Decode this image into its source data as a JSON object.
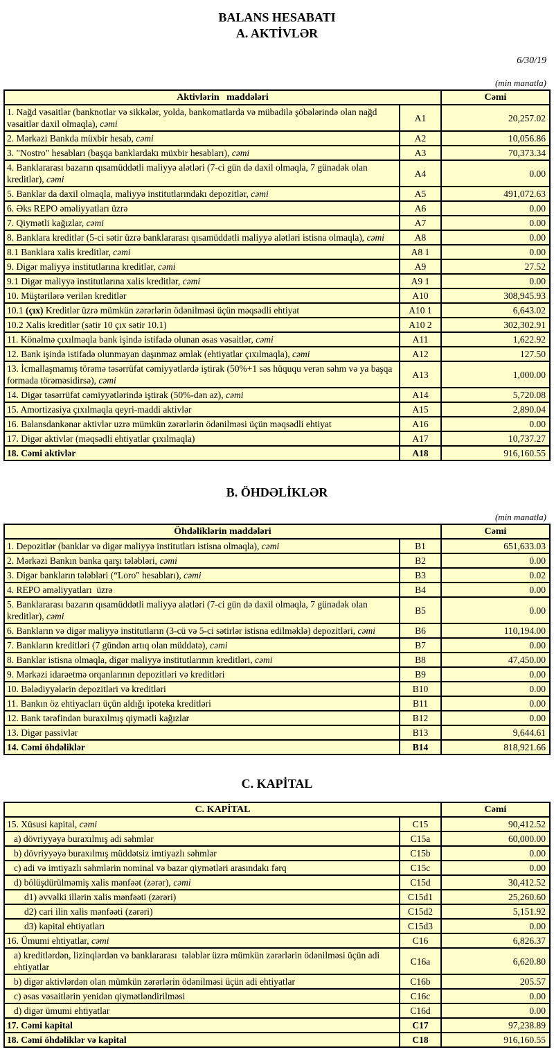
{
  "page": {
    "title_line1": "BALANS HESABATI",
    "title_line2": "A. AKTİVLƏR",
    "date": "6/30/19",
    "unit_note_a": "(min manatla)",
    "section_b_title": "B. ÖHDƏLİKLƏR",
    "unit_note_b": "(min manatla)",
    "section_c_title": "C. KAPİTAL"
  },
  "tables": {
    "assets": {
      "header": {
        "items": "Aktivlərin   maddələri",
        "total": "Cəmi"
      },
      "rows": [
        {
          "label": [
            [
              "1. Nağd vəsaitlər (banknotlar və sikkələr, yolda, bankomatlarda və mübadilə şöbələrində olan nağd vəsaitlər daxil olmaqla), ",
              ""
            ],
            [
              "cəmi",
              "i"
            ]
          ],
          "code": "A1",
          "value": "20,257.02"
        },
        {
          "label": [
            [
              "2. Mərkəzi Bankda müxbir hesab, ",
              ""
            ],
            [
              "cəmi",
              "i"
            ]
          ],
          "code": "A2",
          "value": "10,056.86"
        },
        {
          "label": [
            [
              "3. \"Nostro\" hesabları (başqa banklardakı müxbir hesabları), ",
              ""
            ],
            [
              "cəmi",
              "i"
            ]
          ],
          "code": "A3",
          "value": "70,373.34"
        },
        {
          "label": [
            [
              "4. Banklararası bazarın qısamüddətli maliyyə alətləri (7-ci gün də daxil olmaqla, 7 günədək olan kreditlər), ",
              ""
            ],
            [
              "cəmi",
              "i"
            ]
          ],
          "code": "A4",
          "value": "0.00"
        },
        {
          "label": [
            [
              "5. Banklar da daxil olmaqla, maliyyə institutlarındakı depozitlər, ",
              ""
            ],
            [
              "cəmi",
              "i"
            ]
          ],
          "code": "A5",
          "value": "491,072.63"
        },
        {
          "label": [
            [
              "6. Əks REPO əməliyyatları üzrə",
              ""
            ]
          ],
          "code": "A6",
          "value": "0.00"
        },
        {
          "label": [
            [
              "7. Qiymətli kağızlar, ",
              ""
            ],
            [
              "cəmi",
              "i"
            ]
          ],
          "code": "A7",
          "value": "0.00"
        },
        {
          "label": [
            [
              "8. Banklara kreditlər (5-ci sətir üzrə banklararası qısamüddətli maliyyə alətləri istisna olmaqla), ",
              ""
            ],
            [
              "cəmi",
              "i"
            ]
          ],
          "code": "A8",
          "value": "0.00"
        },
        {
          "label": [
            [
              "8.1 Banklara xalis kreditlər, ",
              ""
            ],
            [
              "cəmi",
              "i"
            ]
          ],
          "code": "A8 1",
          "value": "0.00"
        },
        {
          "label": [
            [
              "9. Digər maliyyə institutlarına kreditlər, ",
              ""
            ],
            [
              "cəmi",
              "i"
            ]
          ],
          "code": "A9",
          "value": "27.52"
        },
        {
          "label": [
            [
              "9.1 Digər maliyyə institutlarına xalis kreditlər, ",
              ""
            ],
            [
              "cəmi",
              "i"
            ]
          ],
          "code": "A9 1",
          "value": "0.00"
        },
        {
          "label": [
            [
              "10. Müştərilərə verilən kreditlər",
              ""
            ]
          ],
          "code": "A10",
          "value": "308,945.93"
        },
        {
          "label": [
            [
              "10.1 ",
              ""
            ],
            [
              "(çıx)",
              "b"
            ],
            [
              " Kreditlər üzrə mümkün zərərlərin ödənilməsi üçün məqsədli ehtiyat",
              ""
            ]
          ],
          "code": "A10 1",
          "value": "6,643.02"
        },
        {
          "label": [
            [
              "10.2 Xalis kreditlər (sətir 10 çıx sətir 10.1)",
              ""
            ]
          ],
          "code": "A10 2",
          "value": "302,302.91"
        },
        {
          "label": [
            [
              "11. Könəlmə çıxılmaqla bank işində istifadə olunan əsas vəsaitlər, ",
              ""
            ],
            [
              "cəmi",
              "i"
            ]
          ],
          "code": "A11",
          "value": "1,622.92"
        },
        {
          "label": [
            [
              "12. Bank işində istifadə olunmayan daşınmaz əmlak (ehtiyatlar çıxılmaqla), ",
              ""
            ],
            [
              "cəmi",
              "i"
            ]
          ],
          "code": "A12",
          "value": "127.50"
        },
        {
          "label": [
            [
              "13. İcmallaşmamış törəmə təsərrüfat cəmiyyətlərdə iştirak (50%+1 səs hüququ verən səhm və ya başqa formada törəməsidirsə), ",
              ""
            ],
            [
              "cəmi",
              "i"
            ]
          ],
          "code": "A13",
          "value": "1,000.00"
        },
        {
          "label": [
            [
              "14. Digər təsərrüfat cəmiyyətlərində iştirak (50%-dən az), ",
              ""
            ],
            [
              "cəmi",
              "i"
            ]
          ],
          "code": "A14",
          "value": "5,720.08"
        },
        {
          "label": [
            [
              "15. Amortizasiya çıxılmaqla qeyri-maddi aktivlər",
              ""
            ]
          ],
          "code": "A15",
          "value": "2,890.04"
        },
        {
          "label": [
            [
              "16. Balansdankənar aktivlər uzrə mümkün zərərlərin ödənilməsi üçün məqsədli ehtiyat",
              ""
            ]
          ],
          "code": "A16",
          "value": "0.00"
        },
        {
          "label": [
            [
              "17. Digər aktivlər (məqsədli ehtiyatlar çıxılmaqla)",
              ""
            ]
          ],
          "code": "A17",
          "value": "10,737.27"
        },
        {
          "label": [
            [
              "18. Cəmi aktivlər",
              ""
            ]
          ],
          "code": "A18",
          "value": "916,160.55",
          "bold": true
        }
      ]
    },
    "liabilities": {
      "header": {
        "items": "Öhdəliklərin maddələri",
        "total": "Cəmi"
      },
      "rows": [
        {
          "label": [
            [
              "1. Depozitlər (banklar və digər maliyyə institutları istisna olmaqla), ",
              ""
            ],
            [
              "cəmi",
              "i"
            ]
          ],
          "code": "B1",
          "value": "651,633.03"
        },
        {
          "label": [
            [
              "2. Mərkəzi Bankın banka qarşı tələbləri, ",
              ""
            ],
            [
              "cəmi",
              "i"
            ]
          ],
          "code": "B2",
          "value": "0.00"
        },
        {
          "label": [
            [
              "3. Digər bankların tələbləri (“Loro\" hesabları), ",
              ""
            ],
            [
              "cəmi",
              "i"
            ]
          ],
          "code": "B3",
          "value": "0.02"
        },
        {
          "label": [
            [
              "4. REPO əməliyyatları  üzrə",
              ""
            ]
          ],
          "code": "B4",
          "value": "0.00"
        },
        {
          "label": [
            [
              "5. Banklararası bazarın qısamüddətli maliyyə alətləri (7-ci gün də daxil olmaqla, 7 günədək olan kreditlər), ",
              ""
            ],
            [
              "cəmi",
              "i"
            ]
          ],
          "code": "B5",
          "value": "0.00"
        },
        {
          "label": [
            [
              "6. Bankların və digər maliyyə institutların (3-cü və 5-ci sətirlər istisna edilməklə) depozitləri, ",
              ""
            ],
            [
              "cəmi",
              "i"
            ]
          ],
          "code": "B6",
          "value": "110,194.00"
        },
        {
          "label": [
            [
              "7. Bankların kreditləri (7 gündən artıq olan müddətə), ",
              ""
            ],
            [
              "cəmi",
              "i"
            ]
          ],
          "code": "B7",
          "value": "0.00"
        },
        {
          "label": [
            [
              "8. Banklar istisna olmaqla, digər maliyyə institutlarının kreditləri, ",
              ""
            ],
            [
              "cəmi",
              "i"
            ]
          ],
          "code": "B8",
          "value": "47,450.00"
        },
        {
          "label": [
            [
              "9. Mərkəzi idarəetmə orqanlarının depozitləri və kreditləri",
              ""
            ]
          ],
          "code": "B9",
          "value": "0.00"
        },
        {
          "label": [
            [
              "10. Bələdiyyələrin depozitləri və kreditləri",
              ""
            ]
          ],
          "code": "B10",
          "value": "0.00"
        },
        {
          "label": [
            [
              "11. Bankın öz ehtiyacları üçün aldığı ipoteka kreditləri",
              ""
            ]
          ],
          "code": "B11",
          "value": "0.00"
        },
        {
          "label": [
            [
              "12. Bank tərəfindən buraxılmış qiymətli kağızlar",
              ""
            ]
          ],
          "code": "B12",
          "value": "0.00"
        },
        {
          "label": [
            [
              "13. Digər passivlər",
              ""
            ]
          ],
          "code": "B13",
          "value": "9,644.61"
        },
        {
          "label": [
            [
              "14. Cəmi öhdəliklər",
              ""
            ]
          ],
          "code": "B14",
          "value": "818,921.66",
          "bold": true
        }
      ]
    },
    "capital": {
      "header": {
        "items": "C. KAPİTAL",
        "total": "Cəmi"
      },
      "rows": [
        {
          "label": [
            [
              "15. Xüsusi kapital, ",
              ""
            ],
            [
              "cəmi",
              "i"
            ]
          ],
          "code": "C15",
          "value": "90,412.52"
        },
        {
          "label": [
            [
              "a) dövriyyəyə buraxılmış adi səhmlər",
              ""
            ]
          ],
          "code": "C15a",
          "value": "60,000.00",
          "indent": 1
        },
        {
          "label": [
            [
              "b) dövriyyəyə buraxılmış müddətsiz imtiyazlı səhmlər",
              ""
            ]
          ],
          "code": "C15b",
          "value": "0.00",
          "indent": 1
        },
        {
          "label": [
            [
              "c) adi və imtiyazlı səhmlərin nominal və bazar qiymətləri arasındakı fərq",
              ""
            ]
          ],
          "code": "C15c",
          "value": "0.00",
          "indent": 1
        },
        {
          "label": [
            [
              "d) bölüşdürülməmiş xalis mənfəət (zərər), ",
              ""
            ],
            [
              "cəmi",
              "i"
            ]
          ],
          "code": "C15d",
          "value": "30,412.52",
          "indent": 1
        },
        {
          "label": [
            [
              "d1) əvvəlki illərin xalis mənfəəti (zərəri)",
              ""
            ]
          ],
          "code": "C15d1",
          "value": "25,260.60",
          "indent": 2
        },
        {
          "label": [
            [
              "d2) cari ilin xalis mənfəəti (zərəri)",
              ""
            ]
          ],
          "code": "C15d2",
          "value": "5,151.92",
          "indent": 2
        },
        {
          "label": [
            [
              "d3) kapital ehtiyatları",
              ""
            ]
          ],
          "code": "C15d3",
          "value": "0.00",
          "indent": 2
        },
        {
          "label": [
            [
              "16. Ümumi ehtiyatlar, ",
              ""
            ],
            [
              "cəmi",
              "i"
            ]
          ],
          "code": "C16",
          "value": "6,826.37"
        },
        {
          "label": [
            [
              "a) kreditlərdən, lizinqlərdən və banklararası  tələblər üzrə mümkün zərərlərin ödənilməsi üçün adi ehtiyatlar",
              ""
            ]
          ],
          "code": "C16a",
          "value": "6,620.80",
          "indent": 1
        },
        {
          "label": [
            [
              "b) digər aktivlərdən olan mümkün zərərlərin ödənilməsi üçün adi ehtiyatlar",
              ""
            ]
          ],
          "code": "C16b",
          "value": "205.57",
          "indent": 1
        },
        {
          "label": [
            [
              "c) əsas vəsaitlərin yenidən qiymətləndirilməsi",
              ""
            ]
          ],
          "code": "C16c",
          "value": "0.00",
          "indent": 1
        },
        {
          "label": [
            [
              "d) digər ümumi ehtiyatlar",
              ""
            ]
          ],
          "code": "C16d",
          "value": "0.00",
          "indent": 1
        },
        {
          "label": [
            [
              "17. Cəmi kapital",
              ""
            ]
          ],
          "code": "C17",
          "value": "97,238.89",
          "bold": true
        },
        {
          "label": [
            [
              "18. Cəmi öhdəliklər və kapital",
              ""
            ]
          ],
          "code": "C18",
          "value": "916,160.55",
          "bold": true
        }
      ]
    }
  }
}
